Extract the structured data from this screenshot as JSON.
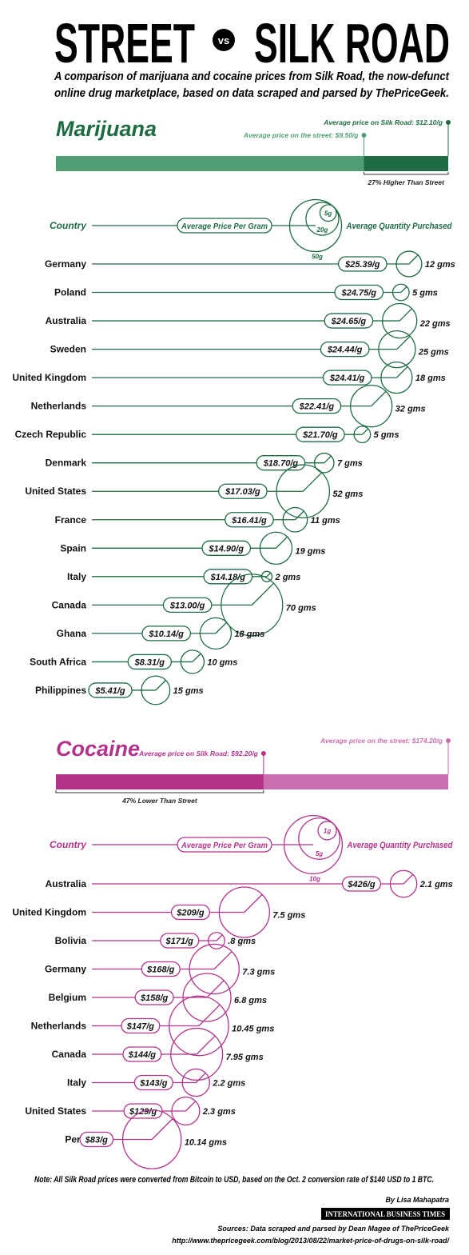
{
  "title": {
    "left": "STREET",
    "vs": "vs",
    "right": "SILK ROAD"
  },
  "subtitle": [
    "A comparison of marijuana and cocaine prices from Silk Road, the now-defunct",
    "online drug marketplace, based on data scraped and parsed by ThePriceGeek."
  ],
  "sections": [
    {
      "name": "Marijuana",
      "color": "#1e6b43",
      "light": "#4f9e74",
      "silk": {
        "value": 12.1,
        "label": "Average price on Silk Road: $12.10/g"
      },
      "street": {
        "value": 9.5,
        "label": "Average price on the street: $9.50/g"
      },
      "comparison": "27% Higher Than Street",
      "legend": {
        "country": "Country",
        "price": "Average Price Per Gram",
        "quantity": "Average Quantity Purchased",
        "circles": [
          {
            "value": 50,
            "label": "50g"
          },
          {
            "value": 20,
            "label": "20g"
          },
          {
            "value": 5,
            "label": "5g"
          }
        ]
      },
      "rows": [
        {
          "country": "Germany",
          "price": 25.39,
          "price_label": "$25.39/g",
          "quantity": 12,
          "quantity_label": "12 gms"
        },
        {
          "country": "Poland",
          "price": 24.75,
          "price_label": "$24.75/g",
          "quantity": 5,
          "quantity_label": "5 gms"
        },
        {
          "country": "Australia",
          "price": 24.65,
          "price_label": "$24.65/g",
          "quantity": 22,
          "quantity_label": "22 gms"
        },
        {
          "country": "Sweden",
          "price": 24.44,
          "price_label": "$24.44/g",
          "quantity": 25,
          "quantity_label": "25 gms"
        },
        {
          "country": "United Kingdom",
          "price": 24.41,
          "price_label": "$24.41/g",
          "quantity": 18,
          "quantity_label": "18 gms"
        },
        {
          "country": "Netherlands",
          "price": 22.41,
          "price_label": "$22.41/g",
          "quantity": 32,
          "quantity_label": "32 gms"
        },
        {
          "country": "Czech Republic",
          "price": 21.7,
          "price_label": "$21.70/g",
          "quantity": 5,
          "quantity_label": "5 gms"
        },
        {
          "country": "Denmark",
          "price": 18.7,
          "price_label": "$18.70/g",
          "quantity": 7,
          "quantity_label": "7 gms"
        },
        {
          "country": "United States",
          "price": 17.03,
          "price_label": "$17.03/g",
          "quantity": 52,
          "quantity_label": "52 gms"
        },
        {
          "country": "France",
          "price": 16.41,
          "price_label": "$16.41/g",
          "quantity": 11,
          "quantity_label": "11 gms"
        },
        {
          "country": "Spain",
          "price": 14.9,
          "price_label": "$14.90/g",
          "quantity": 19,
          "quantity_label": "19 gms"
        },
        {
          "country": "Italy",
          "price": 14.18,
          "price_label": "$14.18/g",
          "quantity": 2,
          "quantity_label": "2 gms"
        },
        {
          "country": "Canada",
          "price": 13.0,
          "price_label": "$13.00/g",
          "quantity": 70,
          "quantity_label": "70 gms"
        },
        {
          "country": "Ghana",
          "price": 10.14,
          "price_label": "$10.14/g",
          "quantity": 18,
          "quantity_label": "18 gms"
        },
        {
          "country": "South Africa",
          "price": 8.31,
          "price_label": "$8.31/g",
          "quantity": 10,
          "quantity_label": "10 gms"
        },
        {
          "country": "Philippines",
          "price": 5.41,
          "price_label": "$5.41/g",
          "quantity": 15,
          "quantity_label": "15 gms"
        }
      ]
    },
    {
      "name": "Cocaine",
      "color": "#b3338b",
      "light": "#c96fae",
      "silk": {
        "value": 92.2,
        "label": "Average price on Silk Road: $92.20/g"
      },
      "street": {
        "value": 174.2,
        "label": "Average price on the street: $174.20/g"
      },
      "comparison": "47% Lower Than Street",
      "legend": {
        "country": "Country",
        "price": "Average Price Per Gram",
        "quantity": "Average Quantity Purchased",
        "circles": [
          {
            "value": 10,
            "label": "10g"
          },
          {
            "value": 5,
            "label": "5g"
          },
          {
            "value": 1,
            "label": "1g"
          }
        ]
      },
      "rows": [
        {
          "country": "Australia",
          "price": 426,
          "price_label": "$426/g",
          "quantity": 2.1,
          "quantity_label": "2.1 gms"
        },
        {
          "country": "United Kingdom",
          "price": 209,
          "price_label": "$209/g",
          "quantity": 7.5,
          "quantity_label": "7.5 gms"
        },
        {
          "country": "Bolivia",
          "price": 171,
          "price_label": "$171/g",
          "quantity": 0.8,
          "quantity_label": ".8 gms"
        },
        {
          "country": "Germany",
          "price": 168,
          "price_label": "$168/g",
          "quantity": 7.3,
          "quantity_label": "7.3 gms"
        },
        {
          "country": "Belgium",
          "price": 158,
          "price_label": "$158/g",
          "quantity": 6.8,
          "quantity_label": "6.8 gms"
        },
        {
          "country": "Netherlands",
          "price": 147,
          "price_label": "$147/g",
          "quantity": 10.45,
          "quantity_label": "10.45 gms"
        },
        {
          "country": "Canada",
          "price": 144,
          "price_label": "$144/g",
          "quantity": 7.95,
          "quantity_label": "7.95 gms"
        },
        {
          "country": "Italy",
          "price": 143,
          "price_label": "$143/g",
          "quantity": 2.2,
          "quantity_label": "2.2 gms"
        },
        {
          "country": "United States",
          "price": 129,
          "price_label": "$129/g",
          "quantity": 2.3,
          "quantity_label": "2.3 gms"
        },
        {
          "country": "Peru",
          "price": 83,
          "price_label": "$83/g",
          "quantity": 10.14,
          "quantity_label": "10.14 gms"
        }
      ]
    }
  ],
  "note": "Note: All Silk Road prices were converted from Bitcoin to USD, based on the Oct. 2 conversion rate of $140 USD to 1 BTC.",
  "byline": "By Lisa Mahapatra",
  "publisher": "INTERNATIONAL BUSINESS TIMES",
  "sources": [
    "Sources: Data scraped and parsed by Dean Magee of ThePriceGeek",
    "http://www.thepricegeek.com/blog/2013/08/22/market-price-of-drugs-on-silk-road/"
  ]
}
